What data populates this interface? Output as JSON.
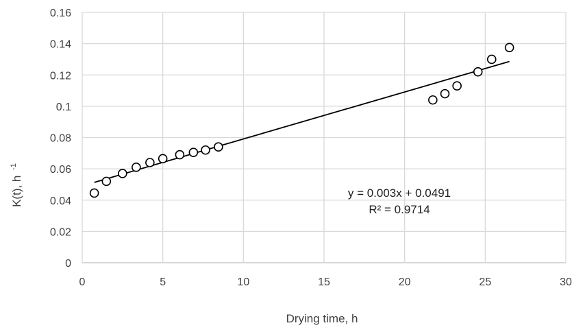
{
  "chart_data": {
    "type": "scatter",
    "xlabel": "Drying time, h",
    "ylabel": "K(t), h",
    "ylabel_superscript": "-1",
    "xlim": [
      0,
      30
    ],
    "ylim": [
      0,
      0.16
    ],
    "x_ticks": [
      "0",
      "5",
      "10",
      "15",
      "20",
      "25",
      "30"
    ],
    "y_ticks": [
      "0",
      "0.02",
      "0.04",
      "0.06",
      "0.08",
      "0.1",
      "0.12",
      "0.14",
      "0.16"
    ],
    "grid": true,
    "series": [
      {
        "x": [
          0.75,
          1.5,
          2.5,
          3.35,
          4.2,
          5.0,
          6.05,
          6.9,
          7.65,
          8.45,
          21.75,
          22.5,
          23.25,
          24.55,
          25.4,
          26.5
        ],
        "y": [
          0.0445,
          0.052,
          0.057,
          0.061,
          0.064,
          0.0665,
          0.069,
          0.0705,
          0.072,
          0.074,
          0.104,
          0.108,
          0.113,
          0.122,
          0.13,
          0.1375
        ]
      }
    ],
    "trendline": {
      "slope": 0.003,
      "intercept": 0.0491,
      "x_range": [
        0.75,
        26.5
      ],
      "equation": "y = 0.003x + 0.0491",
      "r_squared": "R² = 0.9714"
    }
  }
}
